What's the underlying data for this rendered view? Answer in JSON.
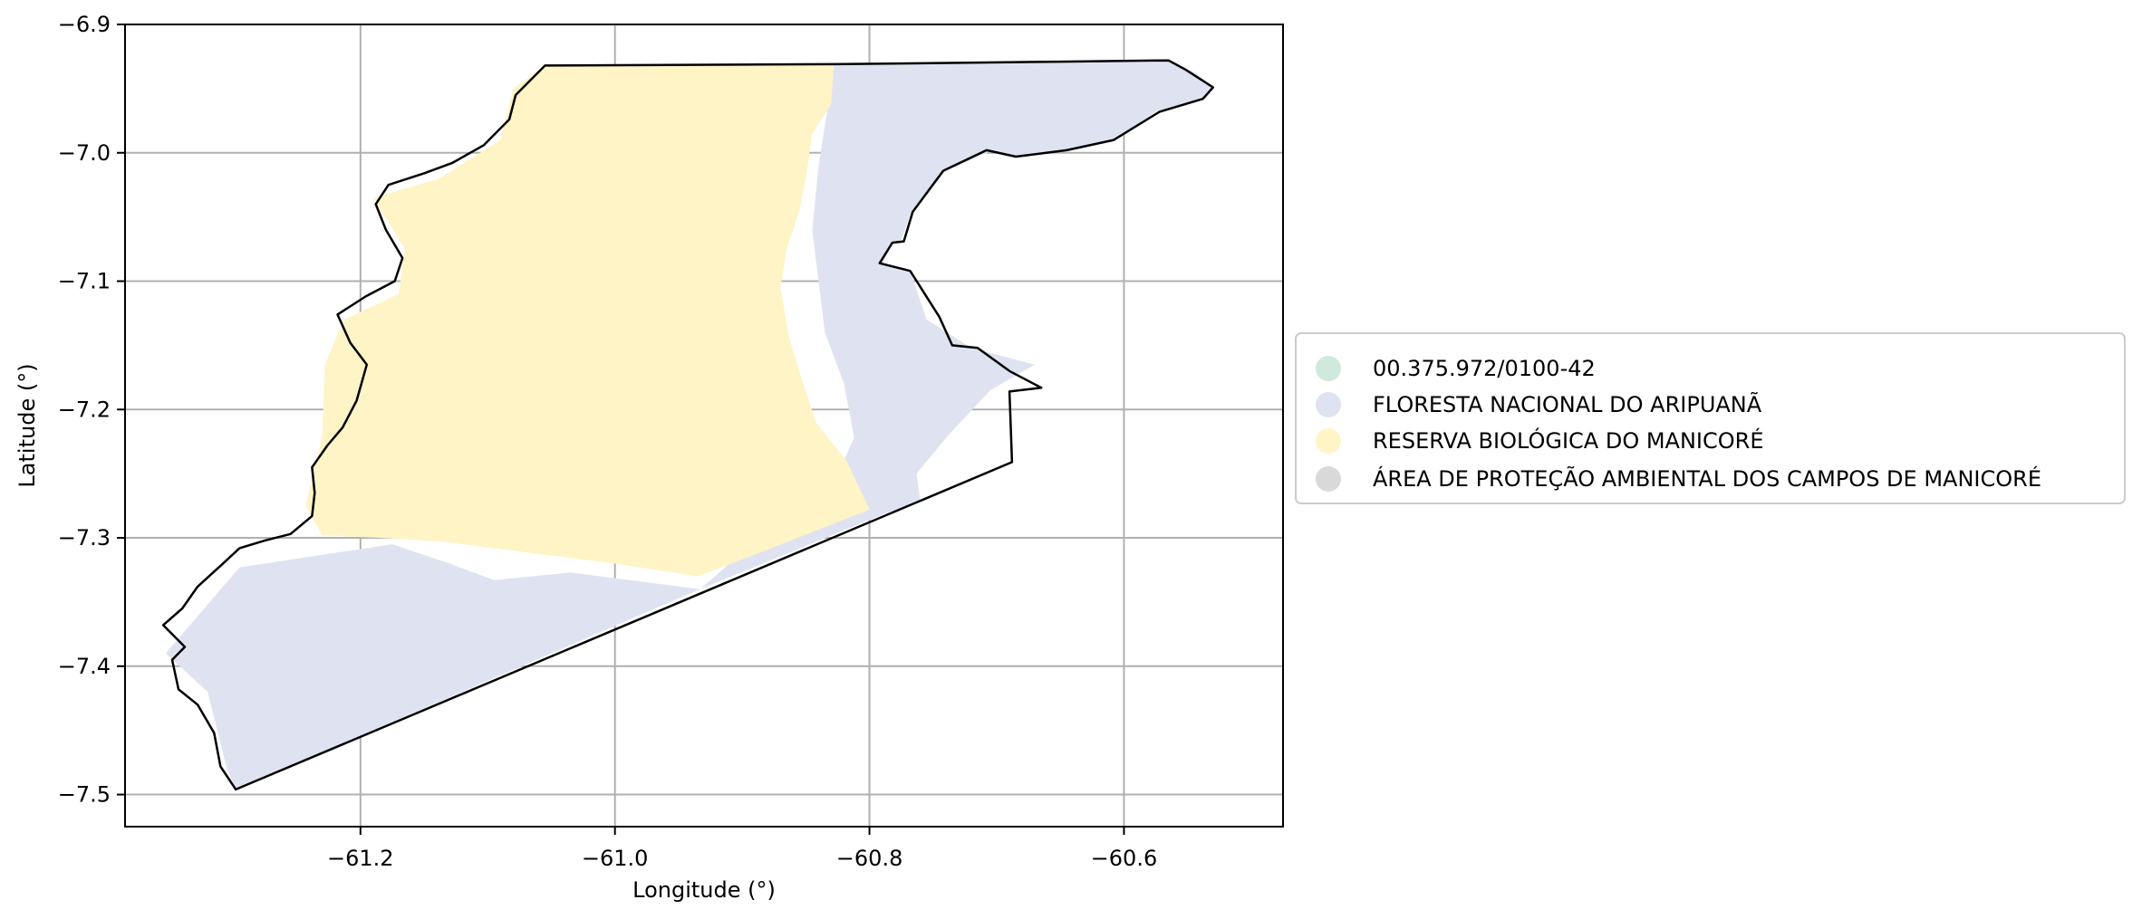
{
  "chart_data": {
    "type": "map",
    "xlabel": "Longitude (°)",
    "ylabel": "Latitude (°)",
    "xlim": [
      -61.385,
      -60.475
    ],
    "ylim": [
      -7.525,
      -6.9
    ],
    "x_ticks": [
      -61.2,
      -61.0,
      -60.8,
      -60.6
    ],
    "x_tick_labels": [
      "−61.2",
      "−61.0",
      "−60.8",
      "−60.6"
    ],
    "y_ticks": [
      -6.9,
      -7.0,
      -7.1,
      -7.2,
      -7.3,
      -7.4,
      -7.5
    ],
    "y_tick_labels": [
      "−6.9",
      "−7.0",
      "−7.1",
      "−7.2",
      "−7.3",
      "−7.4",
      "−7.5"
    ],
    "grid": true,
    "legend_position": "right",
    "legend": [
      {
        "label": "00.375.972/0100-42",
        "color": "#cfe9dc"
      },
      {
        "label": "FLORESTA NACIONAL DO ARIPUANÃ",
        "color": "#dfe3f1"
      },
      {
        "label": "RESERVA BIOLÓGICA DO MANICORÉ",
        "color": "#fff4c6"
      },
      {
        "label": "ÁREA DE PROTEÇÃO AMBIENTAL DOS CAMPOS DE MANICORÉ",
        "color": "#d9d9d9"
      }
    ],
    "boundary_color": "#000000",
    "regions": [
      {
        "name": "FLORESTA NACIONAL DO ARIPUANÃ",
        "color": "#dfe3f1",
        "coords": [
          [
            -61.055,
            -6.932
          ],
          [
            -60.828,
            -6.931
          ],
          [
            -60.65,
            -6.929
          ],
          [
            -60.565,
            -6.928
          ],
          [
            -60.545,
            -6.937
          ],
          [
            -60.53,
            -6.948
          ],
          [
            -60.535,
            -6.957
          ],
          [
            -60.575,
            -6.968
          ],
          [
            -60.608,
            -6.99
          ],
          [
            -60.648,
            -6.998
          ],
          [
            -60.688,
            -7.003
          ],
          [
            -60.705,
            -6.999
          ],
          [
            -60.74,
            -7.014
          ],
          [
            -60.768,
            -7.048
          ],
          [
            -60.775,
            -7.068
          ],
          [
            -60.782,
            -7.07
          ],
          [
            -60.79,
            -7.087
          ],
          [
            -60.768,
            -7.092
          ],
          [
            -60.755,
            -7.13
          ],
          [
            -60.72,
            -7.152
          ],
          [
            -60.67,
            -7.165
          ],
          [
            -60.705,
            -7.185
          ],
          [
            -60.738,
            -7.22
          ],
          [
            -60.763,
            -7.25
          ],
          [
            -60.76,
            -7.272
          ],
          [
            -60.79,
            -7.282
          ],
          [
            -60.933,
            -7.34
          ],
          [
            -61.298,
            -7.496
          ],
          [
            -61.305,
            -7.48
          ],
          [
            -61.32,
            -7.42
          ],
          [
            -61.353,
            -7.39
          ],
          [
            -61.295,
            -7.323
          ],
          [
            -61.175,
            -7.305
          ],
          [
            -61.13,
            -7.32
          ],
          [
            -61.095,
            -7.333
          ],
          [
            -61.035,
            -7.327
          ],
          [
            -60.933,
            -7.34
          ],
          [
            -60.91,
            -7.32
          ],
          [
            -60.865,
            -7.28
          ],
          [
            -60.825,
            -7.25
          ],
          [
            -60.812,
            -7.222
          ],
          [
            -60.82,
            -7.18
          ],
          [
            -60.835,
            -7.14
          ],
          [
            -60.845,
            -7.06
          ],
          [
            -60.84,
            -7.01
          ],
          [
            -60.832,
            -6.96
          ],
          [
            -60.828,
            -6.931
          ]
        ]
      },
      {
        "name": "RESERVA BIOLÓGICA DO MANICORÉ",
        "color": "#fff4c6",
        "coords": [
          [
            -61.055,
            -6.932
          ],
          [
            -60.828,
            -6.931
          ],
          [
            -60.83,
            -6.962
          ],
          [
            -60.845,
            -6.985
          ],
          [
            -60.85,
            -7.02
          ],
          [
            -60.855,
            -7.045
          ],
          [
            -60.865,
            -7.075
          ],
          [
            -60.87,
            -7.105
          ],
          [
            -60.863,
            -7.145
          ],
          [
            -60.852,
            -7.18
          ],
          [
            -60.842,
            -7.21
          ],
          [
            -60.818,
            -7.24
          ],
          [
            -60.8,
            -7.278
          ],
          [
            -60.895,
            -7.315
          ],
          [
            -60.935,
            -7.33
          ],
          [
            -61.0,
            -7.32
          ],
          [
            -61.08,
            -7.31
          ],
          [
            -61.135,
            -7.303
          ],
          [
            -61.185,
            -7.3
          ],
          [
            -61.23,
            -7.298
          ],
          [
            -61.243,
            -7.275
          ],
          [
            -61.23,
            -7.22
          ],
          [
            -61.228,
            -7.165
          ],
          [
            -61.213,
            -7.13
          ],
          [
            -61.17,
            -7.11
          ],
          [
            -61.165,
            -7.075
          ],
          [
            -61.19,
            -7.035
          ],
          [
            -61.138,
            -7.02
          ],
          [
            -61.09,
            -6.99
          ],
          [
            -61.08,
            -6.95
          ],
          [
            -61.055,
            -6.932
          ]
        ]
      }
    ],
    "outline": [
      [
        -61.055,
        -6.932
      ],
      [
        -60.828,
        -6.931
      ],
      [
        -60.65,
        -6.929
      ],
      [
        -60.565,
        -6.928
      ],
      [
        -60.552,
        -6.935
      ],
      [
        -60.53,
        -6.949
      ],
      [
        -60.538,
        -6.958
      ],
      [
        -60.572,
        -6.968
      ],
      [
        -60.608,
        -6.99
      ],
      [
        -60.645,
        -6.998
      ],
      [
        -60.685,
        -7.003
      ],
      [
        -60.708,
        -6.998
      ],
      [
        -60.742,
        -7.014
      ],
      [
        -60.766,
        -7.046
      ],
      [
        -60.773,
        -7.069
      ],
      [
        -60.782,
        -7.07
      ],
      [
        -60.792,
        -7.086
      ],
      [
        -60.768,
        -7.092
      ],
      [
        -60.745,
        -7.128
      ],
      [
        -60.735,
        -7.15
      ],
      [
        -60.715,
        -7.152
      ],
      [
        -60.69,
        -7.17
      ],
      [
        -60.665,
        -7.183
      ],
      [
        -60.69,
        -7.186
      ],
      [
        -60.688,
        -7.241
      ],
      [
        -61.298,
        -7.496
      ],
      [
        -61.31,
        -7.478
      ],
      [
        -61.315,
        -7.452
      ],
      [
        -61.328,
        -7.43
      ],
      [
        -61.343,
        -7.418
      ],
      [
        -61.348,
        -7.395
      ],
      [
        -61.338,
        -7.385
      ],
      [
        -61.355,
        -7.368
      ],
      [
        -61.34,
        -7.355
      ],
      [
        -61.328,
        -7.338
      ],
      [
        -61.308,
        -7.32
      ],
      [
        -61.295,
        -7.308
      ],
      [
        -61.275,
        -7.302
      ],
      [
        -61.255,
        -7.297
      ],
      [
        -61.238,
        -7.283
      ],
      [
        -61.236,
        -7.265
      ],
      [
        -61.238,
        -7.245
      ],
      [
        -61.226,
        -7.228
      ],
      [
        -61.214,
        -7.214
      ],
      [
        -61.203,
        -7.193
      ],
      [
        -61.195,
        -7.165
      ],
      [
        -61.208,
        -7.148
      ],
      [
        -61.218,
        -7.126
      ],
      [
        -61.196,
        -7.112
      ],
      [
        -61.173,
        -7.1
      ],
      [
        -61.167,
        -7.082
      ],
      [
        -61.18,
        -7.06
      ],
      [
        -61.188,
        -7.04
      ],
      [
        -61.178,
        -7.025
      ],
      [
        -61.15,
        -7.016
      ],
      [
        -61.128,
        -7.008
      ],
      [
        -61.103,
        -6.994
      ],
      [
        -61.083,
        -6.974
      ],
      [
        -61.078,
        -6.955
      ],
      [
        -61.055,
        -6.932
      ]
    ]
  }
}
